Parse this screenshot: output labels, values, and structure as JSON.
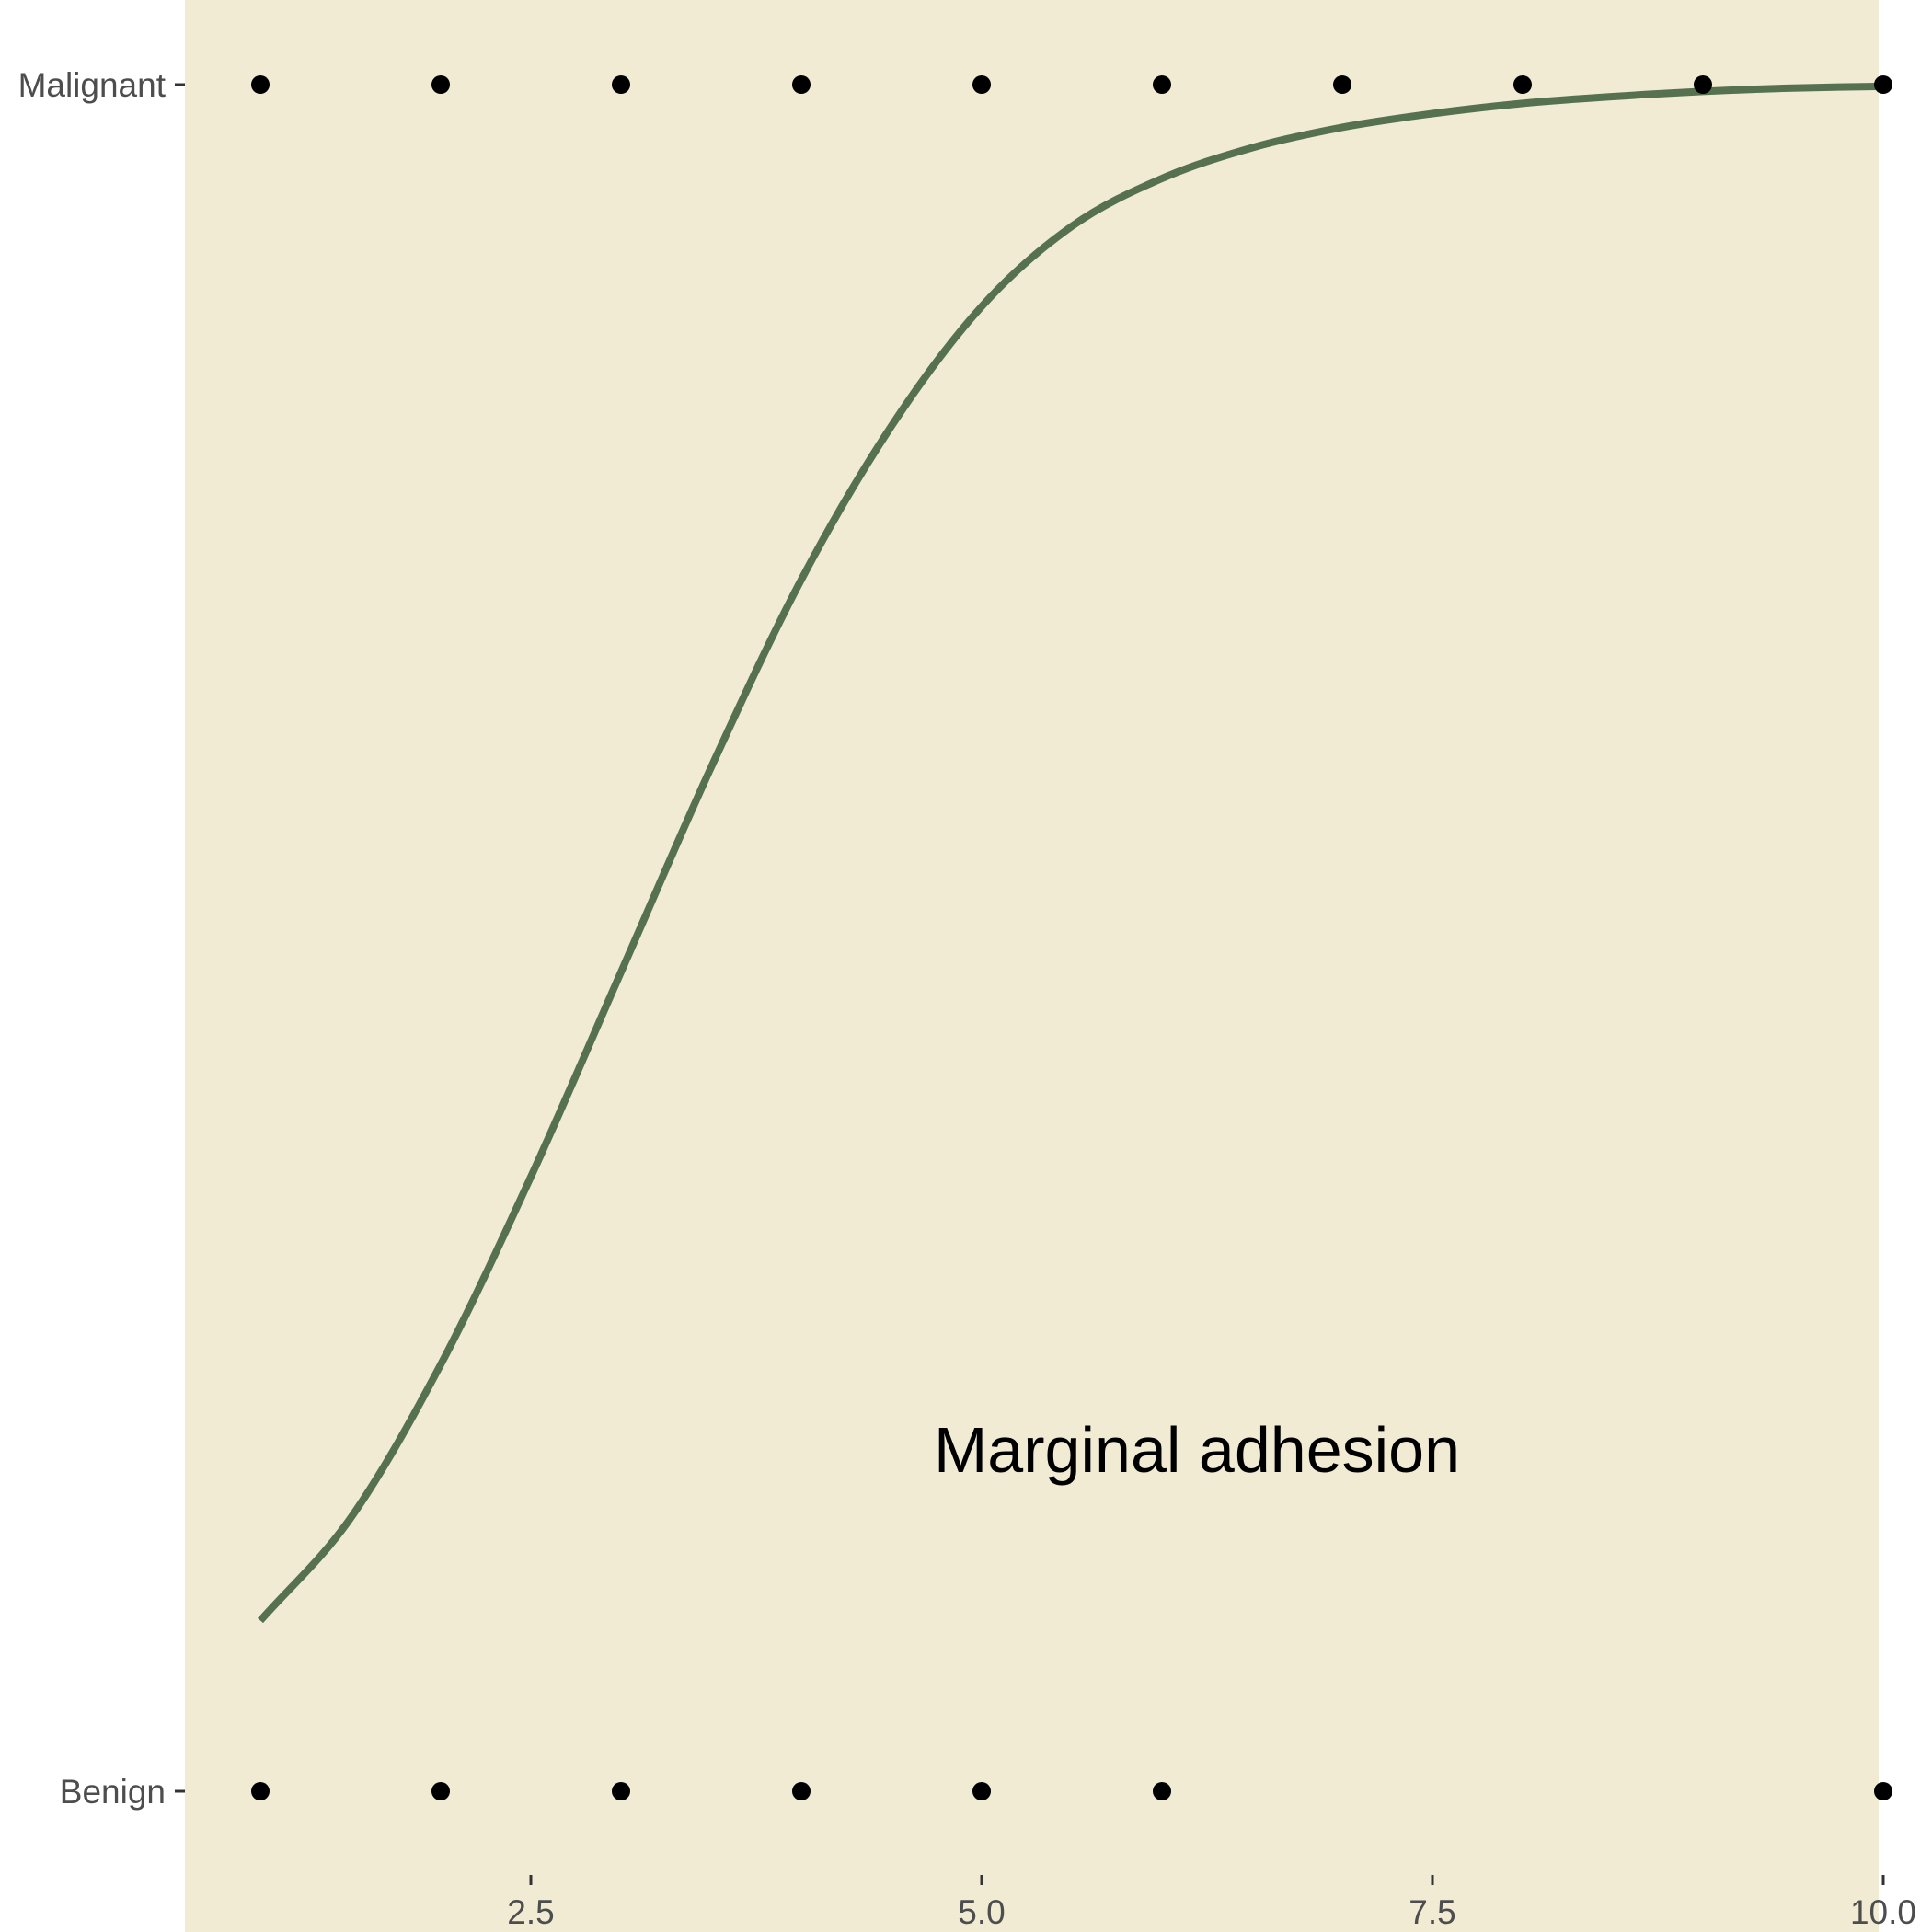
{
  "colors": {
    "plot_background": "#f0ebd2",
    "curve": "#567150",
    "points": "#000000",
    "tick_text": "#4d4d4d",
    "tick_mark": "#333333",
    "annotation": "#000000"
  },
  "chart_data": {
    "type": "scatter",
    "title": "",
    "xlabel": "",
    "ylabel": "",
    "annotation": "Marginal adhesion",
    "xlim": [
      0.45,
      10.55
    ],
    "ylim": [
      -0.08,
      1.0
    ],
    "grid": false,
    "x_ticks": [
      2.5,
      5.0,
      7.5,
      10.0
    ],
    "x_tick_labels": [
      "2.5",
      "5.0",
      "7.5",
      "10.0"
    ],
    "y_categories": [
      "Benign",
      "Malignant"
    ],
    "points": [
      {
        "x": 1,
        "class": "Malignant"
      },
      {
        "x": 2,
        "class": "Malignant"
      },
      {
        "x": 3,
        "class": "Malignant"
      },
      {
        "x": 4,
        "class": "Malignant"
      },
      {
        "x": 5,
        "class": "Malignant"
      },
      {
        "x": 6,
        "class": "Malignant"
      },
      {
        "x": 7,
        "class": "Malignant"
      },
      {
        "x": 8,
        "class": "Malignant"
      },
      {
        "x": 9,
        "class": "Malignant"
      },
      {
        "x": 10,
        "class": "Malignant"
      },
      {
        "x": 1,
        "class": "Benign"
      },
      {
        "x": 2,
        "class": "Benign"
      },
      {
        "x": 3,
        "class": "Benign"
      },
      {
        "x": 4,
        "class": "Benign"
      },
      {
        "x": 5,
        "class": "Benign"
      },
      {
        "x": 6,
        "class": "Benign"
      },
      {
        "x": 10,
        "class": "Benign"
      }
    ],
    "fitted_curve": {
      "type": "logistic",
      "x": [
        1.0,
        1.5,
        2.0,
        2.5,
        3.0,
        3.5,
        4.0,
        4.5,
        5.0,
        5.5,
        6.0,
        6.5,
        7.0,
        7.5,
        8.0,
        8.5,
        9.0,
        9.5,
        10.0
      ],
      "y": [
        0.1,
        0.16,
        0.25,
        0.36,
        0.48,
        0.6,
        0.71,
        0.8,
        0.87,
        0.917,
        0.945,
        0.963,
        0.975,
        0.983,
        0.989,
        0.993,
        0.996,
        0.998,
        0.999
      ]
    }
  }
}
